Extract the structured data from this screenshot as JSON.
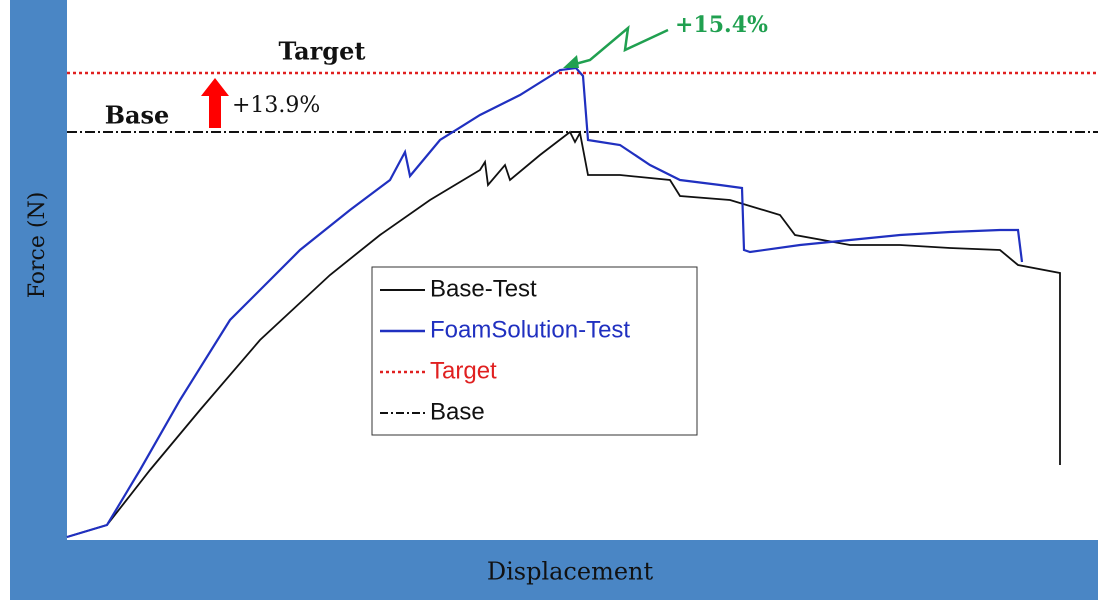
{
  "chart_data": {
    "type": "line",
    "xlabel": "Displacement",
    "ylabel": "Force (N)",
    "annotations": {
      "target": "Target",
      "base": "Base",
      "increase_base": "+13.9%",
      "increase_peak": "+15.4%"
    },
    "legend": [
      "Base-Test",
      "FoamSolution-Test",
      "Target",
      "Base"
    ]
  }
}
